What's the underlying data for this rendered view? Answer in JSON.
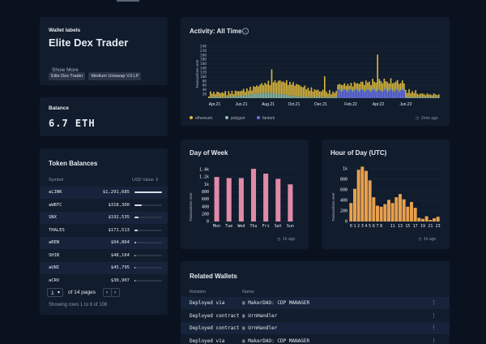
{
  "wallet_labels": {
    "heading": "Wallet labels",
    "name": "Elite Dex Trader",
    "tags": [
      "Elite Dex Trader",
      "Medium Uniswap V3 LP"
    ],
    "show_more": "Show More"
  },
  "balance": {
    "heading": "Balance",
    "value": "6.7 ETH"
  },
  "token_balances": {
    "heading": "Token Balances",
    "col_symbol": "Symbol",
    "col_value": "USD Value",
    "rows": [
      {
        "symbol": "aLINK",
        "value": "$1,291,685",
        "fraction": 1.0
      },
      {
        "symbol": "aWBTC",
        "value": "$318,300",
        "fraction": 0.25
      },
      {
        "symbol": "SNX",
        "value": "$192,535",
        "fraction": 0.15
      },
      {
        "symbol": "THALES",
        "value": "$171,513",
        "fraction": 0.13
      },
      {
        "symbol": "aREN",
        "value": "$94,864",
        "fraction": 0.07
      },
      {
        "symbol": "SHIB",
        "value": "$48,164",
        "fraction": 0.04
      },
      {
        "symbol": "aUNI",
        "value": "$45,795",
        "fraction": 0.035
      },
      {
        "symbol": "aCRV",
        "value": "$30,907",
        "fraction": 0.025
      }
    ],
    "page_value": "1",
    "of_pages": "of 14 pages",
    "showing": "Showing rows 1 to 8 of 108"
  },
  "chart_data": [
    {
      "type": "bar",
      "title": "Activity: All Time",
      "ylabel": "Transactions sent",
      "ylim": [
        0,
        240
      ],
      "yticks": [
        20,
        40,
        60,
        80,
        100,
        120,
        140,
        160,
        180,
        200,
        220,
        240
      ],
      "xticks": [
        "Apr.21",
        "Jun.21",
        "Aug.21",
        "Oct.21",
        "Dec.21",
        "Feb.22",
        "Apr.22",
        "Jun.22"
      ],
      "legend": "bottom-left",
      "series": [
        {
          "name": "ethereum",
          "color": "#d9b63c"
        },
        {
          "name": "polygon",
          "color": "#8fc0a9"
        },
        {
          "name": "fantom",
          "color": "#6a73e8"
        }
      ],
      "timestamp": "2min ago"
    },
    {
      "type": "bar",
      "title": "Day of Week",
      "ylabel": "Transactions sent",
      "categories": [
        "Mon",
        "Tue",
        "Wed",
        "Thu",
        "Fri",
        "Sat",
        "Sun"
      ],
      "values": [
        1200,
        1170,
        1170,
        1420,
        1290,
        1150,
        1000
      ],
      "yticks": [
        "0",
        "200",
        "400",
        "600",
        "800",
        "1k",
        "1.2k",
        "1.4k"
      ],
      "ylim": [
        0,
        1400
      ],
      "color": "#e08aa8",
      "timestamp": "1h ago"
    },
    {
      "type": "bar",
      "title": "Hour of Day (UTC)",
      "ylabel": "Transactions sent",
      "categories": [
        "0",
        "1",
        "2",
        "3",
        "4",
        "5",
        "6",
        "7",
        "8",
        "9",
        "10",
        "11",
        "12",
        "13",
        "14",
        "15",
        "16",
        "17",
        "18",
        "19",
        "20",
        "21",
        "22",
        "23"
      ],
      "values": [
        350,
        620,
        980,
        1040,
        960,
        780,
        460,
        300,
        280,
        330,
        410,
        350,
        460,
        520,
        420,
        280,
        370,
        260,
        70,
        50,
        100,
        30,
        60,
        90
      ],
      "tick_labels": [
        "0",
        "1",
        "2",
        "3",
        "4",
        "5",
        "6",
        "7",
        "8",
        "11",
        "13",
        "15",
        "17",
        "19",
        "21",
        "23"
      ],
      "yticks": [
        "0",
        "200",
        "400",
        "600",
        "800",
        "1k"
      ],
      "ylim": [
        0,
        1000
      ],
      "color": "#e8a04f",
      "timestamp": "1h ago"
    }
  ],
  "related_wallets": {
    "heading": "Related Wallets",
    "col_relation": "Relation",
    "col_name": "Name",
    "rows": [
      {
        "relation": "Deployed via",
        "name": "MakerDAO: CDP MANAGER"
      },
      {
        "relation": "Deployed contract",
        "name": "UrnHandler"
      },
      {
        "relation": "Deployed contract",
        "name": "UrnHandler"
      },
      {
        "relation": "Deployed via",
        "name": "MakerDAO: CDP MANAGER"
      }
    ]
  }
}
